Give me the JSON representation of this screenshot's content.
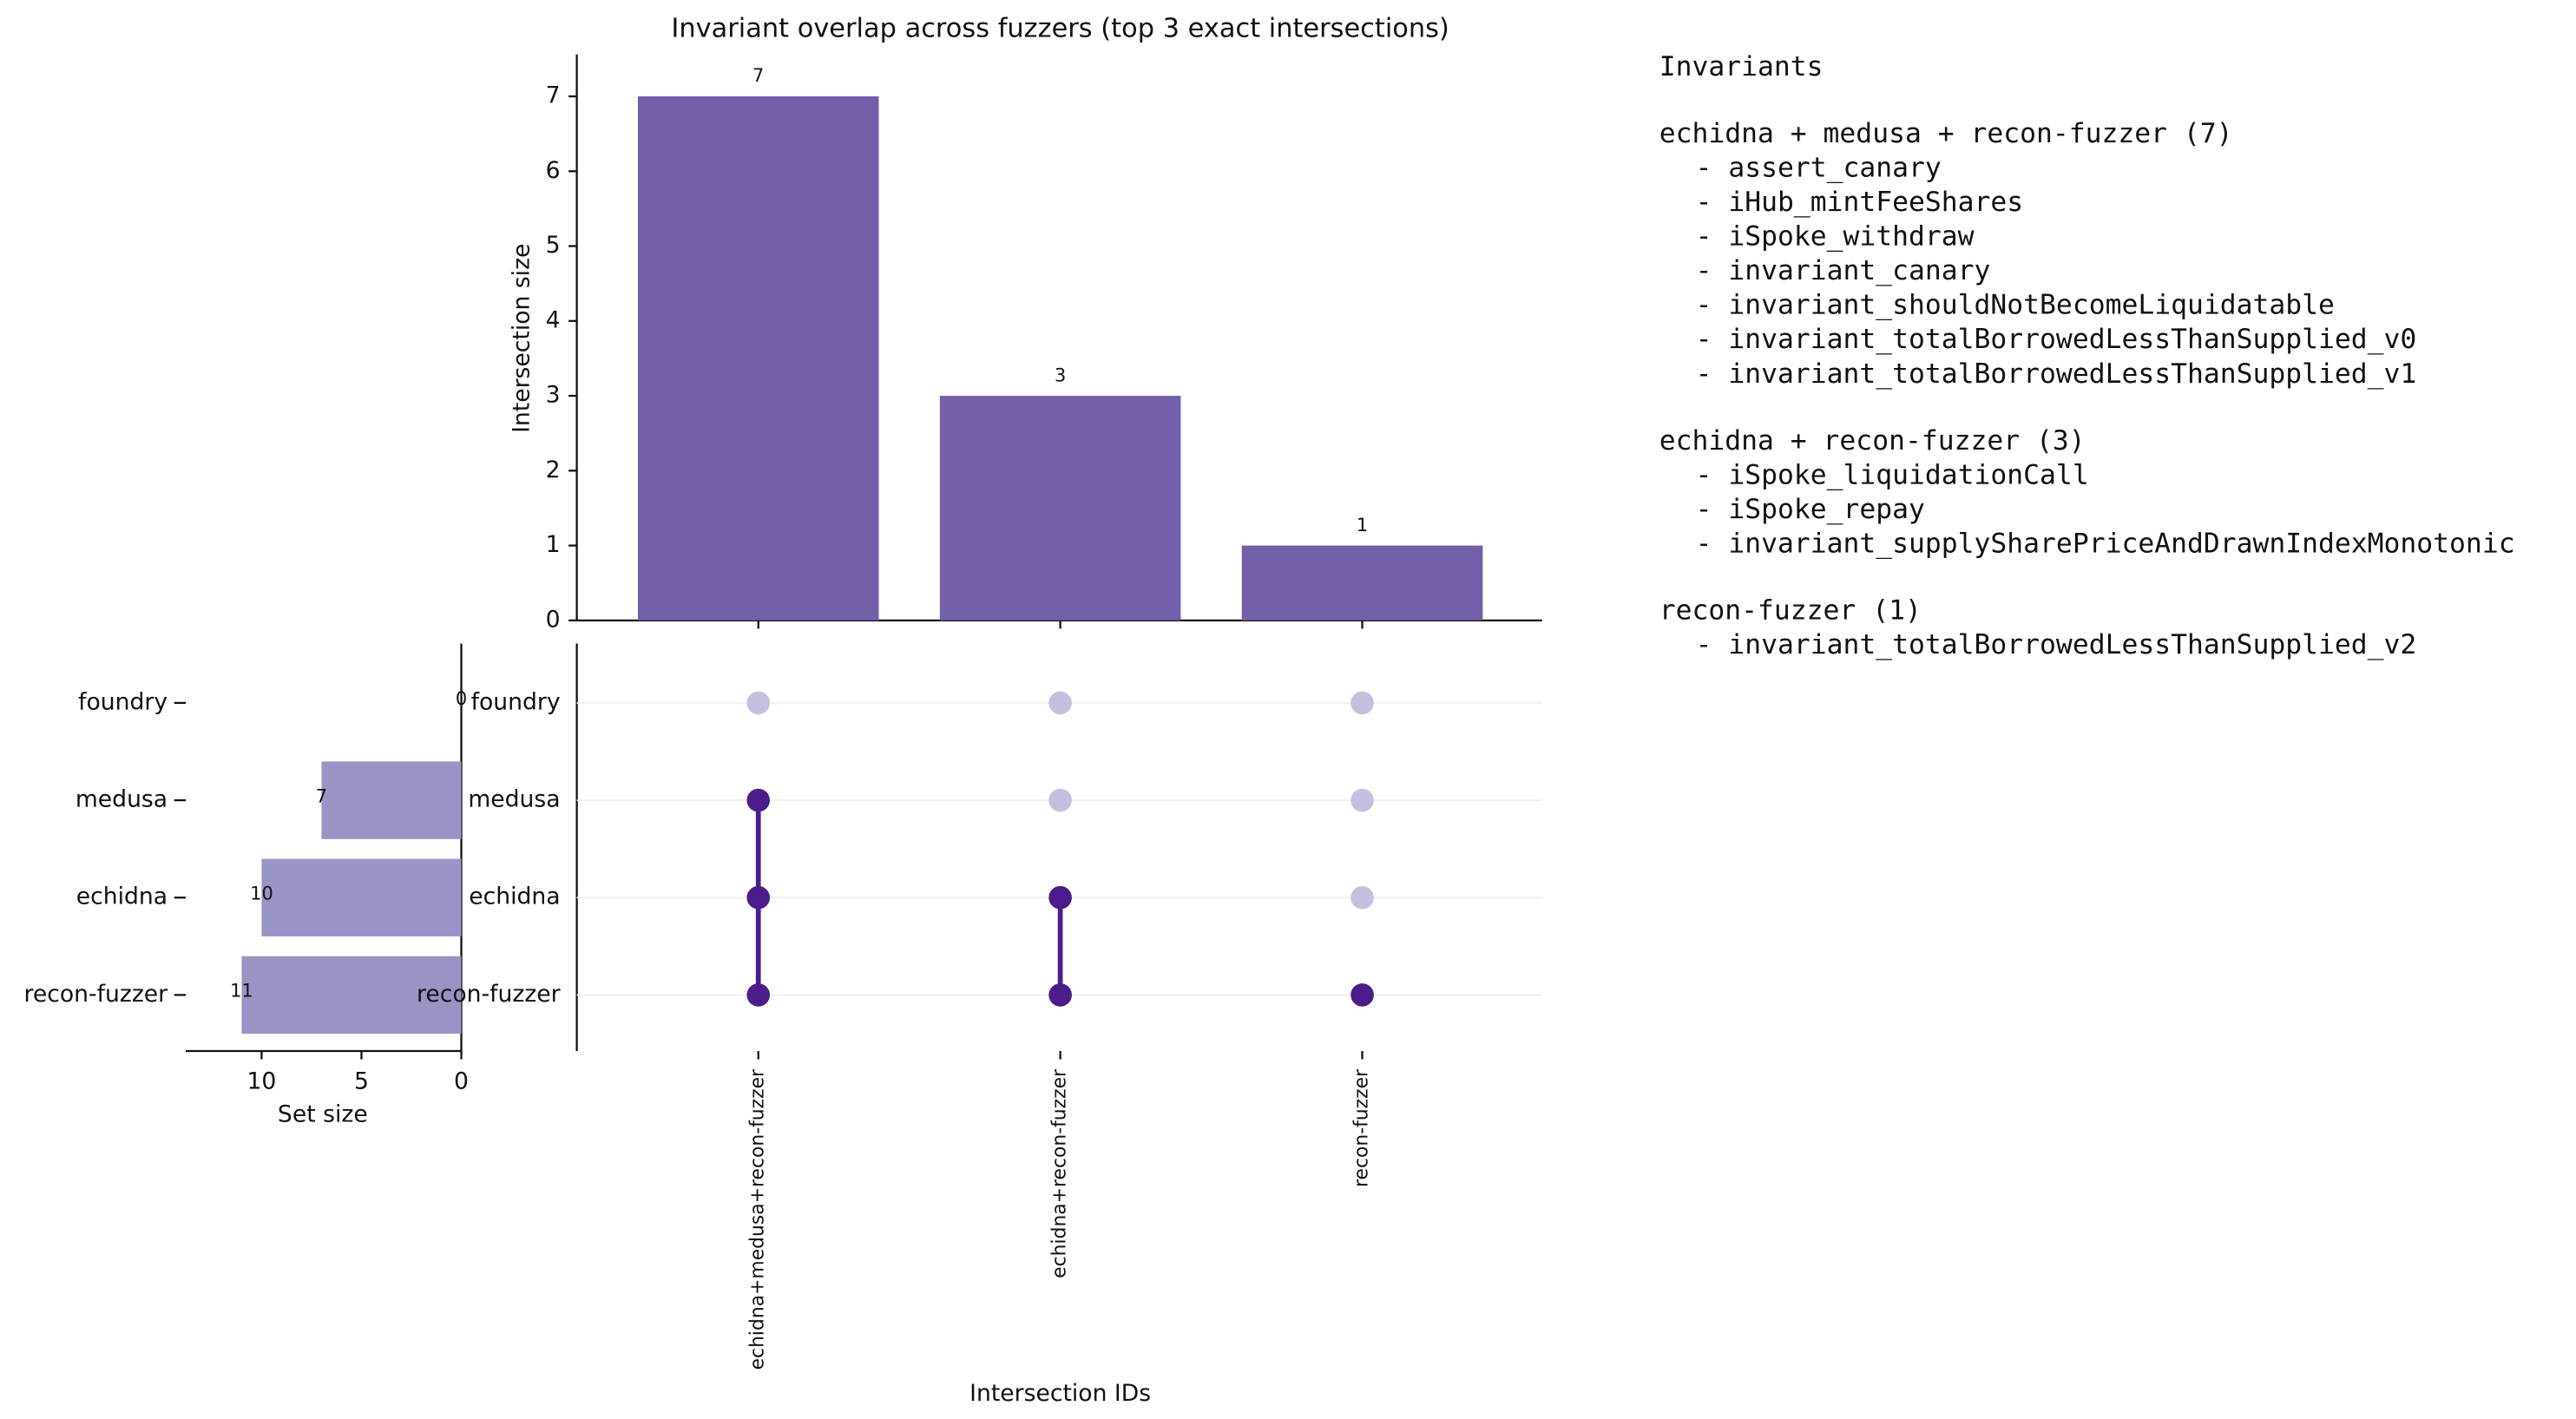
{
  "chart_data": [
    {
      "type": "bar",
      "title": "Invariant overlap across fuzzers (top 3 exact intersections)",
      "ylabel": "Intersection size",
      "xlabel": "Intersection IDs",
      "categories": [
        "echidna+medusa+recon-fuzzer",
        "echidna+recon-fuzzer",
        "recon-fuzzer"
      ],
      "values": [
        7,
        3,
        1
      ],
      "color": "#725ea9",
      "ylim": [
        0,
        7.56
      ],
      "yticks": [
        0,
        1,
        2,
        3,
        4,
        5,
        6,
        7
      ]
    },
    {
      "type": "barh",
      "xlabel": "Set size",
      "categories": [
        "foundry",
        "medusa",
        "echidna",
        "recon-fuzzer"
      ],
      "values": [
        0,
        7,
        10,
        11
      ],
      "color": "#9894c5",
      "xlim": [
        13.8,
        0
      ],
      "xticks": [
        10,
        5,
        0
      ]
    },
    {
      "type": "matrix",
      "membership": [
        [
          0,
          0,
          0
        ],
        [
          1,
          0,
          0
        ],
        [
          1,
          1,
          0
        ],
        [
          1,
          1,
          1
        ]
      ],
      "active_color": "#4b1d8a",
      "inactive_color": "#c1c1df"
    }
  ],
  "invariants_panel": {
    "title": "Invariants",
    "groups": [
      {
        "heading": "echidna + medusa + recon-fuzzer (7)",
        "items": [
          "- assert_canary",
          "- iHub_mintFeeShares",
          "- iSpoke_withdraw",
          "- invariant_canary",
          "- invariant_shouldNotBecomeLiquidatable",
          "- invariant_totalBorrowedLessThanSupplied_v0",
          "- invariant_totalBorrowedLessThanSupplied_v1"
        ]
      },
      {
        "heading": "echidna + recon-fuzzer (3)",
        "items": [
          "- iSpoke_liquidationCall",
          "- iSpoke_repay",
          "- invariant_supplySharePriceAndDrawnIndexMonotonic"
        ]
      },
      {
        "heading": "recon-fuzzer (1)",
        "items": [
          "- invariant_totalBorrowedLessThanSupplied_v2"
        ]
      }
    ]
  }
}
